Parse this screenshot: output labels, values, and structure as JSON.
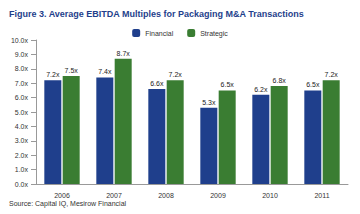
{
  "chart_data": {
    "type": "bar",
    "title": "Figure 3. Average EBITDA Multiples for Packaging M&A Transactions",
    "source": "Source: Capital IQ, Mesirow Financial",
    "categories": [
      "2006",
      "2007",
      "2008",
      "2009",
      "2010",
      "2011"
    ],
    "series": [
      {
        "name": "Financial",
        "color": "#1f3f8c",
        "values": [
          7.2,
          7.4,
          6.6,
          5.3,
          6.2,
          6.5
        ],
        "value_labels": [
          "7.2x",
          "7.4x",
          "6.6x",
          "5.3x",
          "6.2x",
          "6.5x"
        ]
      },
      {
        "name": "Strategic",
        "color": "#3a7d32",
        "values": [
          7.5,
          8.7,
          7.2,
          6.5,
          6.8,
          7.2
        ],
        "value_labels": [
          "7.5x",
          "8.7x",
          "7.2x",
          "6.5x",
          "6.8x",
          "7.2x"
        ]
      }
    ],
    "ylim": [
      0,
      10
    ],
    "yticks": [
      {
        "value": 0,
        "label": "0.0x"
      },
      {
        "value": 1,
        "label": "1.0x"
      },
      {
        "value": 2,
        "label": "2.0x"
      },
      {
        "value": 3,
        "label": "3.0x"
      },
      {
        "value": 4,
        "label": "4.0x"
      },
      {
        "value": 5,
        "label": "5.0x"
      },
      {
        "value": 6,
        "label": "6.0x"
      },
      {
        "value": 7,
        "label": "7.0x"
      },
      {
        "value": 8,
        "label": "8.0x"
      },
      {
        "value": 9,
        "label": "9.0x"
      },
      {
        "value": 10,
        "label": "10.0x"
      }
    ],
    "grid": false,
    "legend": "top",
    "data_labels": true
  }
}
